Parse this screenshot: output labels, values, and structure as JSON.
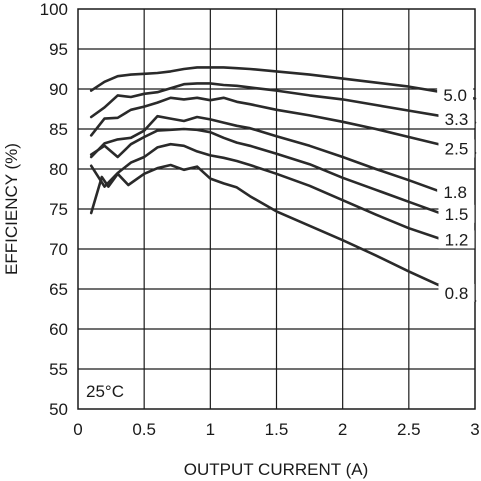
{
  "chart_data": {
    "type": "line",
    "xlabel": "OUTPUT CURRENT (A)",
    "ylabel": "EFFICIENCY (%)",
    "xlim": [
      0,
      3
    ],
    "ylim": [
      50,
      100
    ],
    "xticks": [
      0,
      0.5,
      1,
      1.5,
      2,
      2.5,
      3
    ],
    "xtick_labels": [
      "0",
      "0.5",
      "1",
      "1.5",
      "2",
      "2.5",
      "3"
    ],
    "yticks": [
      50,
      55,
      60,
      65,
      70,
      75,
      80,
      85,
      90,
      95,
      100
    ],
    "ytick_labels": [
      "50",
      "55",
      "60",
      "65",
      "70",
      "75",
      "80",
      "85",
      "90",
      "95",
      "100"
    ],
    "grid": true,
    "annotation": "25°C",
    "series": [
      {
        "name": "5.0",
        "x": [
          0.1,
          0.2,
          0.3,
          0.4,
          0.5,
          0.6,
          0.7,
          0.8,
          0.9,
          1.0,
          1.1,
          1.2,
          1.3,
          1.5,
          1.75,
          2.0,
          2.25,
          2.5,
          2.75,
          3.0
        ],
        "values": [
          89.8,
          90.9,
          91.6,
          91.8,
          91.9,
          92.0,
          92.2,
          92.5,
          92.7,
          92.7,
          92.7,
          92.6,
          92.5,
          92.2,
          91.8,
          91.3,
          90.8,
          90.3,
          89.6,
          88.8
        ]
      },
      {
        "name": "3.3",
        "x": [
          0.1,
          0.2,
          0.3,
          0.4,
          0.5,
          0.6,
          0.7,
          0.8,
          0.9,
          1.0,
          1.1,
          1.2,
          1.3,
          1.5,
          1.75,
          2.0,
          2.25,
          2.5,
          2.75,
          3.0
        ],
        "values": [
          86.5,
          87.7,
          89.2,
          89.0,
          89.4,
          89.6,
          90.1,
          90.6,
          90.7,
          90.7,
          90.5,
          90.4,
          90.2,
          89.8,
          89.2,
          88.7,
          88.0,
          87.3,
          86.6,
          85.8
        ]
      },
      {
        "name": "2.5",
        "x": [
          0.1,
          0.2,
          0.3,
          0.4,
          0.5,
          0.6,
          0.7,
          0.8,
          0.9,
          1.0,
          1.1,
          1.2,
          1.3,
          1.5,
          1.75,
          2.0,
          2.25,
          2.5,
          2.75,
          3.0
        ],
        "values": [
          84.2,
          86.3,
          86.4,
          87.4,
          87.8,
          88.3,
          88.9,
          88.7,
          88.9,
          88.6,
          88.9,
          88.4,
          88.1,
          87.4,
          86.7,
          85.9,
          85.0,
          84.0,
          83.0,
          82.0
        ]
      },
      {
        "name": "1.8",
        "x": [
          0.1,
          0.2,
          0.3,
          0.4,
          0.5,
          0.6,
          0.7,
          0.8,
          0.9,
          1.0,
          1.1,
          1.2,
          1.3,
          1.5,
          1.75,
          2.0,
          2.25,
          2.5,
          2.75
        ],
        "values": [
          81.5,
          83.2,
          83.7,
          83.9,
          84.8,
          86.6,
          86.3,
          86.0,
          86.5,
          86.2,
          85.8,
          85.4,
          85.1,
          84.1,
          82.9,
          81.5,
          80.0,
          78.6,
          77.1
        ]
      },
      {
        "name": "1.5",
        "x": [
          0.1,
          0.2,
          0.3,
          0.4,
          0.5,
          0.6,
          0.7,
          0.8,
          0.9,
          1.0,
          1.1,
          1.2,
          1.3,
          1.5,
          1.75,
          2.0,
          2.25,
          2.5,
          2.75
        ],
        "values": [
          81.8,
          82.9,
          81.5,
          83.1,
          84.0,
          84.8,
          84.9,
          85.0,
          84.9,
          84.6,
          83.9,
          83.3,
          82.9,
          81.9,
          80.6,
          78.9,
          77.4,
          75.9,
          74.4
        ]
      },
      {
        "name": "1.2",
        "x": [
          0.1,
          0.2,
          0.3,
          0.4,
          0.5,
          0.6,
          0.7,
          0.8,
          0.9,
          1.0,
          1.1,
          1.2,
          1.3,
          1.5,
          1.75,
          2.0,
          2.25,
          2.5,
          2.75
        ],
        "values": [
          80.4,
          77.8,
          79.5,
          80.8,
          81.5,
          82.7,
          83.1,
          82.9,
          82.2,
          81.7,
          81.4,
          81.0,
          80.5,
          79.4,
          77.9,
          76.1,
          74.3,
          72.6,
          71.2
        ]
      },
      {
        "name": "0.8",
        "x": [
          0.1,
          0.18,
          0.23,
          0.3,
          0.38,
          0.5,
          0.6,
          0.7,
          0.8,
          0.9,
          1.0,
          1.1,
          1.2,
          1.3,
          1.5,
          1.75,
          2.0,
          2.25,
          2.5,
          2.75,
          3.0
        ],
        "values": [
          74.5,
          79.0,
          77.8,
          79.4,
          78.0,
          79.4,
          80.1,
          80.5,
          79.9,
          80.3,
          78.8,
          78.2,
          77.7,
          76.6,
          74.7,
          72.9,
          71.1,
          69.2,
          67.2,
          65.3,
          63.5
        ]
      }
    ]
  }
}
